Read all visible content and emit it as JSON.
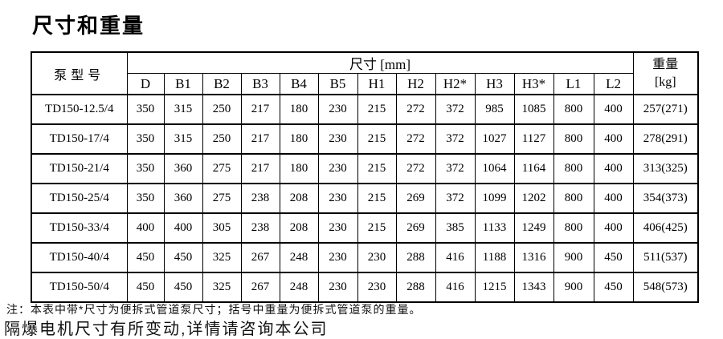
{
  "page": {
    "title": "尺寸和重量"
  },
  "colors": {
    "background": "#ffffff",
    "text": "#000000",
    "border": "#000000"
  },
  "table": {
    "header": {
      "pump_model": "泵型号",
      "dimensions_group": "尺寸 [mm]",
      "weight_line1": "重量",
      "weight_line2": "[kg]",
      "columns": [
        "D",
        "B1",
        "B2",
        "B3",
        "B4",
        "B5",
        "H1",
        "H2",
        "H2*",
        "H3",
        "H3*",
        "L1",
        "L2"
      ]
    },
    "rows": [
      {
        "model": "TD150-12.5/4",
        "values": [
          "350",
          "315",
          "250",
          "217",
          "180",
          "230",
          "215",
          "272",
          "372",
          "985",
          "1085",
          "800",
          "400"
        ],
        "weight": "257(271)"
      },
      {
        "model": "TD150-17/4",
        "values": [
          "350",
          "315",
          "250",
          "217",
          "180",
          "230",
          "215",
          "272",
          "372",
          "1027",
          "1127",
          "800",
          "400"
        ],
        "weight": "278(291)"
      },
      {
        "model": "TD150-21/4",
        "values": [
          "350",
          "360",
          "275",
          "217",
          "180",
          "230",
          "215",
          "272",
          "372",
          "1064",
          "1164",
          "800",
          "400"
        ],
        "weight": "313(325)"
      },
      {
        "model": "TD150-25/4",
        "values": [
          "350",
          "360",
          "275",
          "238",
          "208",
          "230",
          "215",
          "269",
          "372",
          "1099",
          "1202",
          "800",
          "400"
        ],
        "weight": "354(373)"
      },
      {
        "model": "TD150-33/4",
        "values": [
          "400",
          "400",
          "305",
          "238",
          "208",
          "230",
          "215",
          "269",
          "385",
          "1133",
          "1249",
          "800",
          "400"
        ],
        "weight": "406(425)"
      },
      {
        "model": "TD150-40/4",
        "values": [
          "450",
          "450",
          "325",
          "267",
          "248",
          "230",
          "230",
          "288",
          "416",
          "1188",
          "1316",
          "900",
          "450"
        ],
        "weight": "511(537)"
      },
      {
        "model": "TD150-50/4",
        "values": [
          "450",
          "450",
          "325",
          "267",
          "248",
          "230",
          "230",
          "288",
          "416",
          "1215",
          "1343",
          "900",
          "450"
        ],
        "weight": "548(573)"
      }
    ]
  },
  "notes": {
    "note1": "注：本表中带*尺寸为便拆式管道泵尺寸；括号中重量为便拆式管道泵的重量。",
    "note2": "隔爆电机尺寸有所变动,详情请咨询本公司"
  }
}
